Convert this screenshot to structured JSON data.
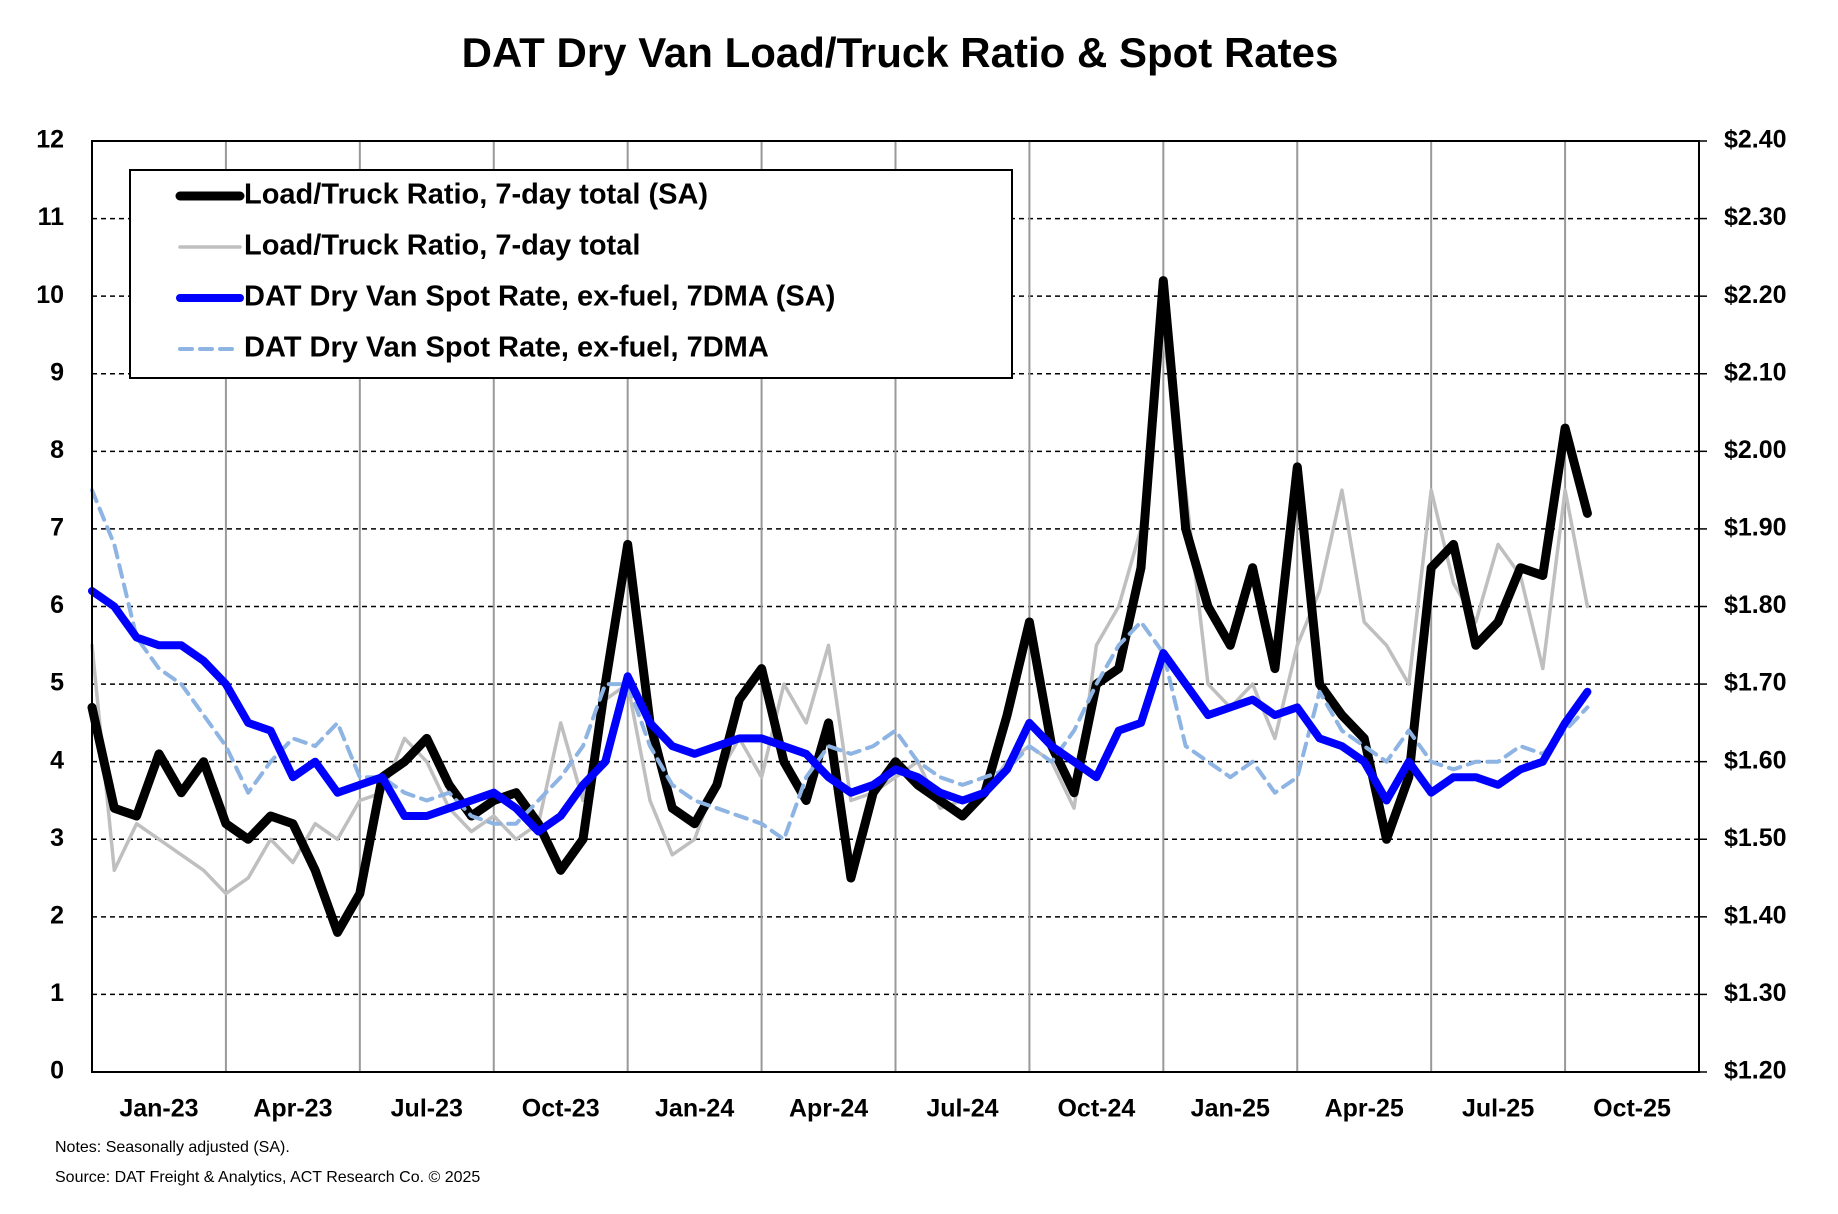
{
  "chart_data": {
    "type": "line",
    "title": "DAT Dry Van Load/Truck Ratio & Spot Rates",
    "notes": "Notes: Seasonally adjusted (SA).",
    "source": "Source: DAT Freight & Analytics, ACT Research Co. © 2025",
    "categories": [
      "Jan-23",
      null,
      null,
      null,
      null,
      null,
      "Apr-23",
      null,
      null,
      null,
      null,
      null,
      "Jul-23",
      null,
      null,
      null,
      null,
      null,
      "Oct-23",
      null,
      null,
      null,
      null,
      null,
      "Jan-24",
      null,
      null,
      null,
      null,
      null,
      "Apr-24",
      null,
      null,
      null,
      null,
      null,
      "Jul-24",
      null,
      null,
      null,
      null,
      null,
      "Oct-24",
      null,
      null,
      null,
      null,
      null,
      "Jan-25",
      null,
      null,
      null,
      null,
      null,
      "Apr-25",
      null,
      null,
      null,
      null,
      null,
      "Jul-25",
      null,
      null,
      null,
      null,
      null,
      "Oct-25",
      null,
      null,
      null,
      null,
      null
    ],
    "ylim": [
      0,
      12
    ],
    "yticks": [
      0,
      1,
      2,
      3,
      4,
      5,
      6,
      7,
      8,
      9,
      10,
      11,
      12
    ],
    "y2lim": [
      1.2,
      2.4
    ],
    "y2ticks": [
      {
        "value": 1.2,
        "label": "$1.20"
      },
      {
        "value": 1.3,
        "label": "$1.30"
      },
      {
        "value": 1.4,
        "label": "$1.40"
      },
      {
        "value": 1.5,
        "label": "$1.50"
      },
      {
        "value": 1.6,
        "label": "$1.60"
      },
      {
        "value": 1.7,
        "label": "$1.70"
      },
      {
        "value": 1.8,
        "label": "$1.80"
      },
      {
        "value": 1.9,
        "label": "$1.90"
      },
      {
        "value": 2.0,
        "label": "$2.00"
      },
      {
        "value": 2.1,
        "label": "$2.10"
      },
      {
        "value": 2.2,
        "label": "$2.20"
      },
      {
        "value": 2.3,
        "label": "$2.30"
      },
      {
        "value": 2.4,
        "label": "$2.40"
      }
    ],
    "grid": true,
    "legend": "upper left",
    "series": [
      {
        "name": "Load/Truck Ratio, 7-day total (SA)",
        "color": "#000000",
        "values": [
          4.7,
          3.4,
          3.3,
          4.1,
          3.6,
          4.0,
          3.2,
          3.0,
          3.3,
          3.2,
          2.6,
          1.8,
          2.3,
          3.8,
          4.0,
          4.3,
          3.7,
          3.3,
          3.5,
          3.6,
          3.2,
          2.6,
          3.0,
          5.0,
          6.8,
          4.5,
          3.4,
          3.2,
          3.7,
          4.8,
          5.2,
          4.0,
          3.5,
          4.5,
          2.5,
          3.6,
          4.0,
          3.7,
          3.5,
          3.3,
          3.6,
          4.6,
          5.8,
          4.2,
          3.6,
          5.0,
          5.2,
          6.5,
          10.2,
          7.0,
          6.0,
          5.5,
          6.5,
          5.2,
          7.8,
          5.0,
          4.6,
          4.3,
          3.0,
          3.8,
          6.5,
          6.8,
          5.5,
          5.8,
          6.5,
          6.4,
          8.3,
          7.2,
          null,
          null,
          null,
          null
        ]
      },
      {
        "name": "Load/Truck Ratio, 7-day total",
        "color": "#bfbfbf",
        "values": [
          5.5,
          2.6,
          3.2,
          3.0,
          2.8,
          2.6,
          2.3,
          2.5,
          3.0,
          2.7,
          3.2,
          3.0,
          3.5,
          3.6,
          4.3,
          4.0,
          3.4,
          3.1,
          3.3,
          3.0,
          3.2,
          4.5,
          3.5,
          4.8,
          5.0,
          3.5,
          2.8,
          3.0,
          3.8,
          4.3,
          3.8,
          5.0,
          4.5,
          5.5,
          3.5,
          3.6,
          3.8,
          4.0,
          3.4,
          3.5,
          3.6,
          4.0,
          4.2,
          4.0,
          3.4,
          5.5,
          6.0,
          7.0,
          9.5,
          7.5,
          5.0,
          4.7,
          5.0,
          4.3,
          5.5,
          6.2,
          7.5,
          5.8,
          5.5,
          5.0,
          7.5,
          6.3,
          5.8,
          6.8,
          6.4,
          5.2,
          7.5,
          6.0,
          null,
          null,
          null,
          null
        ]
      },
      {
        "name": "DAT Dry Van Spot Rate, ex-fuel, 7DMA (SA)",
        "color": "#0000ff",
        "axis": "y2",
        "values": [
          1.82,
          1.8,
          1.76,
          1.75,
          1.75,
          1.73,
          1.7,
          1.65,
          1.64,
          1.58,
          1.6,
          1.56,
          1.57,
          1.58,
          1.53,
          1.53,
          1.54,
          1.55,
          1.56,
          1.54,
          1.51,
          1.53,
          1.57,
          1.6,
          1.71,
          1.65,
          1.62,
          1.61,
          1.62,
          1.63,
          1.63,
          1.62,
          1.61,
          1.58,
          1.56,
          1.57,
          1.59,
          1.58,
          1.56,
          1.55,
          1.56,
          1.59,
          1.65,
          1.62,
          1.6,
          1.58,
          1.64,
          1.65,
          1.74,
          1.7,
          1.66,
          1.67,
          1.68,
          1.66,
          1.67,
          1.63,
          1.62,
          1.6,
          1.55,
          1.6,
          1.56,
          1.58,
          1.58,
          1.57,
          1.59,
          1.6,
          1.65,
          1.69,
          null,
          null,
          null,
          null
        ]
      },
      {
        "name": "DAT Dry Van Spot Rate, ex-fuel, 7DMA",
        "color": "#8eb4e3",
        "axis": "y2",
        "dashed": true,
        "values": [
          1.95,
          1.88,
          1.76,
          1.72,
          1.7,
          1.66,
          1.62,
          1.56,
          1.6,
          1.63,
          1.62,
          1.65,
          1.58,
          1.58,
          1.56,
          1.55,
          1.56,
          1.53,
          1.52,
          1.52,
          1.55,
          1.58,
          1.62,
          1.7,
          1.7,
          1.62,
          1.57,
          1.55,
          1.54,
          1.53,
          1.52,
          1.5,
          1.58,
          1.62,
          1.61,
          1.62,
          1.64,
          1.6,
          1.58,
          1.57,
          1.58,
          1.59,
          1.62,
          1.6,
          1.64,
          1.7,
          1.75,
          1.78,
          1.74,
          1.62,
          1.6,
          1.58,
          1.6,
          1.56,
          1.58,
          1.69,
          1.64,
          1.62,
          1.6,
          1.64,
          1.6,
          1.59,
          1.6,
          1.6,
          1.62,
          1.61,
          1.64,
          1.67,
          null,
          null,
          null,
          null
        ]
      }
    ]
  }
}
